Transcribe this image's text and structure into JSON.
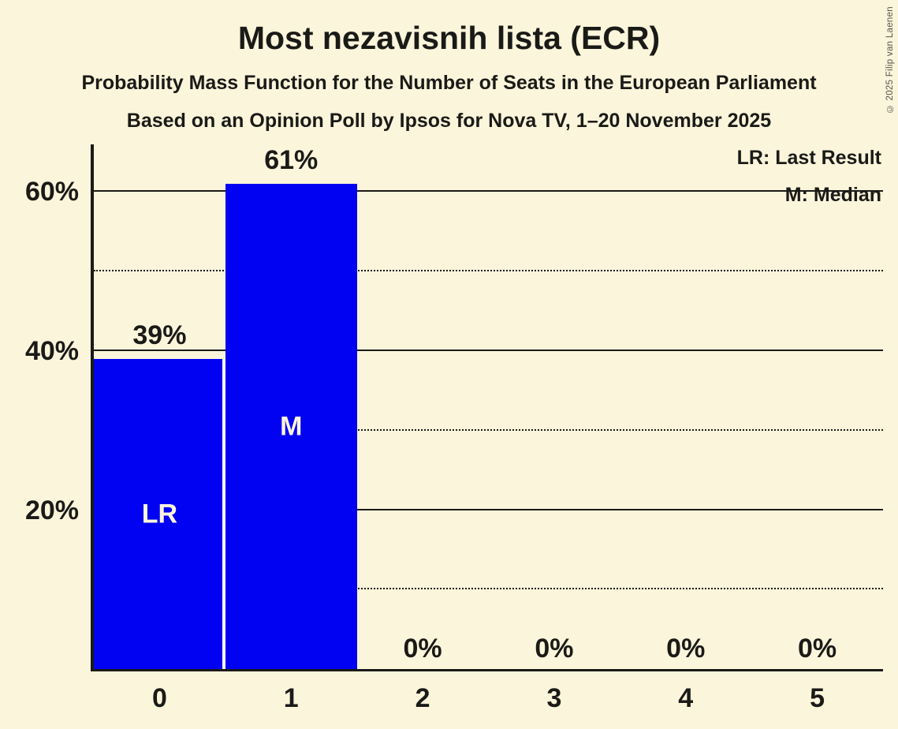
{
  "header": {
    "title": "Most nezavisnih lista (ECR)",
    "subtitle1": "Probability Mass Function for the Number of Seats in the European Parliament",
    "subtitle2": "Based on an Opinion Poll by Ipsos for Nova TV, 1–20 November 2025"
  },
  "legend": {
    "line1": "LR: Last Result",
    "line2": "M: Median"
  },
  "copyright": "© 2025 Filip van Laenen",
  "colors": {
    "background": "#FBF5DB",
    "bar": "#0202F2",
    "text": "#1A1A17",
    "bar_label": "#FBF5DB",
    "separator": "#FFFFFF",
    "copyright_text": "#55554E"
  },
  "chart_data": {
    "type": "bar",
    "title": "Most nezavisnih lista (ECR)",
    "categories": [
      "0",
      "1",
      "2",
      "3",
      "4",
      "5"
    ],
    "values": [
      39,
      61,
      0,
      0,
      0,
      0
    ],
    "value_labels": [
      "39%",
      "61%",
      "0%",
      "0%",
      "0%",
      "0%"
    ],
    "bar_annotations": [
      {
        "index": 0,
        "label": "LR"
      },
      {
        "index": 1,
        "label": "M"
      }
    ],
    "xlabel": "",
    "ylabel": "",
    "y_axis": {
      "max_pct": 66,
      "major_ticks": [
        {
          "value": 20,
          "label": "20%"
        },
        {
          "value": 40,
          "label": "40%"
        },
        {
          "value": 60,
          "label": "60%"
        }
      ],
      "minor_tick_values": [
        10,
        30,
        50
      ],
      "grid": true
    },
    "legend_position": "top-right"
  }
}
